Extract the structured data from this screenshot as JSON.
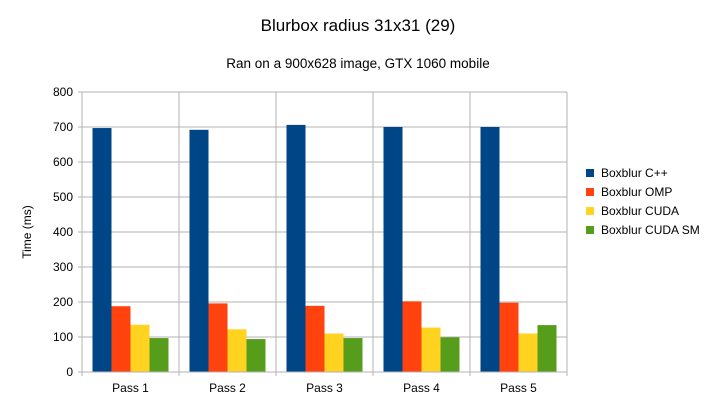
{
  "chart_data": {
    "type": "bar",
    "title": "Blurbox radius 31x31 (29)",
    "subtitle": "Ran on a 900x628 image, GTX 1060 mobile",
    "xlabel": "",
    "ylabel": "Time (ms)",
    "ylim": [
      0,
      800
    ],
    "yticks": [
      0,
      100,
      200,
      300,
      400,
      500,
      600,
      700,
      800
    ],
    "grid": true,
    "legend_position": "right",
    "categories": [
      "Pass 1",
      "Pass 2",
      "Pass 3",
      "Pass 4",
      "Pass 5"
    ],
    "series": [
      {
        "name": "Boxblur C++",
        "color": "#004586",
        "values": [
          697,
          692,
          706,
          700,
          700
        ]
      },
      {
        "name": "Boxblur OMP",
        "color": "#ff420e",
        "values": [
          188,
          196,
          189,
          202,
          198
        ]
      },
      {
        "name": "Boxblur CUDA",
        "color": "#ffd320",
        "values": [
          135,
          122,
          110,
          127,
          110
        ]
      },
      {
        "name": "Boxblur CUDA SM",
        "color": "#579d1c",
        "values": [
          97,
          94,
          97,
          99,
          134
        ]
      }
    ]
  }
}
